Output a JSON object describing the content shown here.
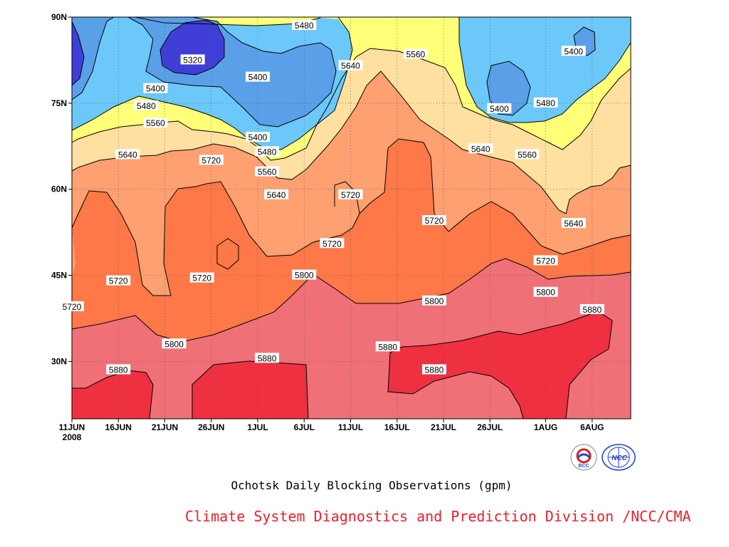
{
  "chart_data": {
    "type": "contour",
    "subtitle": "Ochotsk Daily Blocking Observations (gpm)",
    "credit": "Climate System Diagnostics and Prediction Division /NCC/CMA",
    "x_ticks": [
      "11JUN",
      "16JUN",
      "21JUN",
      "26JUN",
      "1JUL",
      "6JUL",
      "11JUL",
      "16JUL",
      "21JUL",
      "26JUL",
      "1AUG",
      "6AUG"
    ],
    "x_year": "2008",
    "y_ticks": [
      "30N",
      "45N",
      "60N",
      "75N",
      "90N"
    ],
    "ylim": [
      20,
      90
    ],
    "contour_levels": [
      5320,
      5400,
      5480,
      5560,
      5640,
      5720,
      5800,
      5880
    ],
    "fill_colors": {
      "below_5320": "#3f3fd8",
      "5320_5400": "#5aa0e8",
      "5400_5480": "#6cc8f8",
      "5480_5560": "#ffff78",
      "5560_5640": "#ffe0a0",
      "5640_5720": "#ffa070",
      "5720_5800": "#ff7848",
      "5800_5880": "#f07078",
      "above_5880": "#ee3040"
    },
    "contour_labels": [
      {
        "text": "5480",
        "date": "6JUL",
        "lat": 88.5
      },
      {
        "text": "5320",
        "date": "24JUN",
        "lat": 82.5
      },
      {
        "text": "5400",
        "date": "1JUL",
        "lat": 79.5
      },
      {
        "text": "5640",
        "date": "11JUL",
        "lat": 81.5
      },
      {
        "text": "5560",
        "date": "18JUL",
        "lat": 83.5
      },
      {
        "text": "5400",
        "date": "4AUG",
        "lat": 84.0
      },
      {
        "text": "5400",
        "date": "20JUN",
        "lat": 77.5
      },
      {
        "text": "5480",
        "date": "19JUN",
        "lat": 74.5
      },
      {
        "text": "5400",
        "date": "27JUL",
        "lat": 74.0
      },
      {
        "text": "5480",
        "date": "1AUG",
        "lat": 75.0
      },
      {
        "text": "5560",
        "date": "20JUN",
        "lat": 71.5
      },
      {
        "text": "5400",
        "date": "1JUL",
        "lat": 69.0
      },
      {
        "text": "5480",
        "date": "2JUL",
        "lat": 66.5
      },
      {
        "text": "5640",
        "date": "25JUL",
        "lat": 67.0
      },
      {
        "text": "5560",
        "date": "30JUL",
        "lat": 66.0
      },
      {
        "text": "5640",
        "date": "17JUN",
        "lat": 66.0
      },
      {
        "text": "5720",
        "date": "26JUN",
        "lat": 65.0
      },
      {
        "text": "5560",
        "date": "2JUL",
        "lat": 63.0
      },
      {
        "text": "5640",
        "date": "3JUL",
        "lat": 59.0
      },
      {
        "text": "5720",
        "date": "11JUL",
        "lat": 59.0
      },
      {
        "text": "5720",
        "date": "20JUL",
        "lat": 54.5
      },
      {
        "text": "5640",
        "date": "4AUG",
        "lat": 54.0
      },
      {
        "text": "5720",
        "date": "9JUL",
        "lat": 50.5
      },
      {
        "text": "5720",
        "date": "1AUG",
        "lat": 47.5
      },
      {
        "text": "5720",
        "date": "16JUN",
        "lat": 44.0
      },
      {
        "text": "5720",
        "date": "25JUN",
        "lat": 44.5
      },
      {
        "text": "5800",
        "date": "6JUL",
        "lat": 45.0
      },
      {
        "text": "5800",
        "date": "1AUG",
        "lat": 42.0
      },
      {
        "text": "5800",
        "date": "20JUL",
        "lat": 40.5
      },
      {
        "text": "5720",
        "date": "11JUN",
        "lat": 39.5
      },
      {
        "text": "5880",
        "date": "6AUG",
        "lat": 39.0
      },
      {
        "text": "5800",
        "date": "22JUN",
        "lat": 33.0
      },
      {
        "text": "5880",
        "date": "15JUL",
        "lat": 32.5
      },
      {
        "text": "5880",
        "date": "2JUL",
        "lat": 30.5
      },
      {
        "text": "5880",
        "date": "16JUN",
        "lat": 28.5
      },
      {
        "text": "5880",
        "date": "20JUL",
        "lat": 28.5
      }
    ]
  },
  "logos": {
    "bcc": "BCC",
    "ncc": "NCC"
  }
}
